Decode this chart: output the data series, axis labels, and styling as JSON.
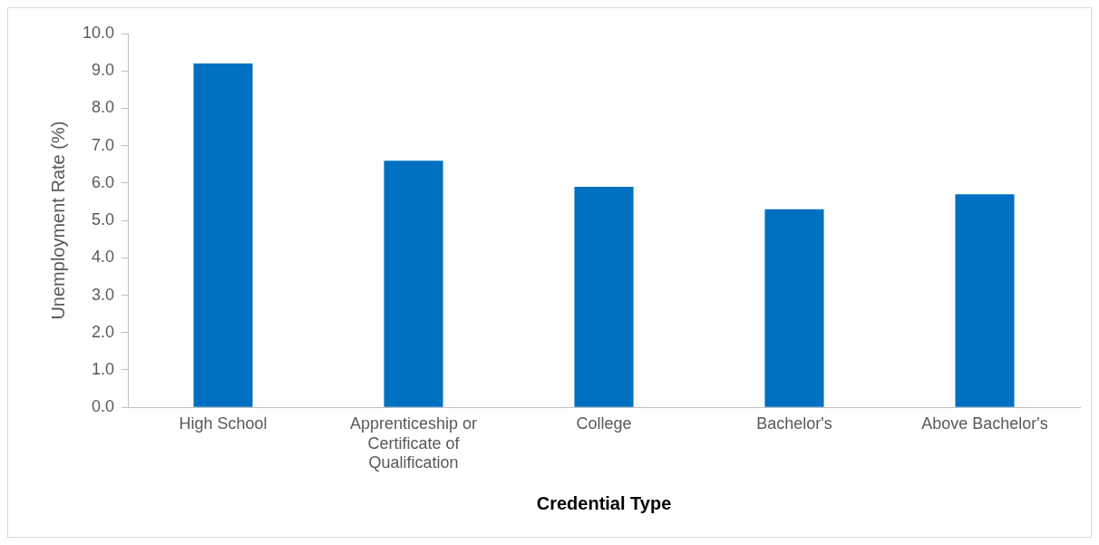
{
  "chart_data": {
    "type": "bar",
    "xlabel": "Credential Type",
    "ylabel": "Unemployment Rate (%)",
    "categories": [
      "High School",
      "Apprenticeship or Certificate of Qualification",
      "College",
      "Bachelor's",
      "Above Bachelor's"
    ],
    "values": [
      9.2,
      6.6,
      5.9,
      5.3,
      5.7
    ],
    "color": "#0070c0",
    "ylim": [
      0,
      10
    ],
    "yticks": [
      {
        "value": 0,
        "label": "0.0"
      },
      {
        "value": 1,
        "label": "1.0"
      },
      {
        "value": 2,
        "label": "2.0"
      },
      {
        "value": 3,
        "label": "3.0"
      },
      {
        "value": 4,
        "label": "4.0"
      },
      {
        "value": 5,
        "label": "5.0"
      },
      {
        "value": 6,
        "label": "6.0"
      },
      {
        "value": 7,
        "label": "7.0"
      },
      {
        "value": 8,
        "label": "8.0"
      },
      {
        "value": 9,
        "label": "9.0"
      },
      {
        "value": 10,
        "label": "10.0"
      }
    ],
    "grid": false,
    "legend": false
  }
}
